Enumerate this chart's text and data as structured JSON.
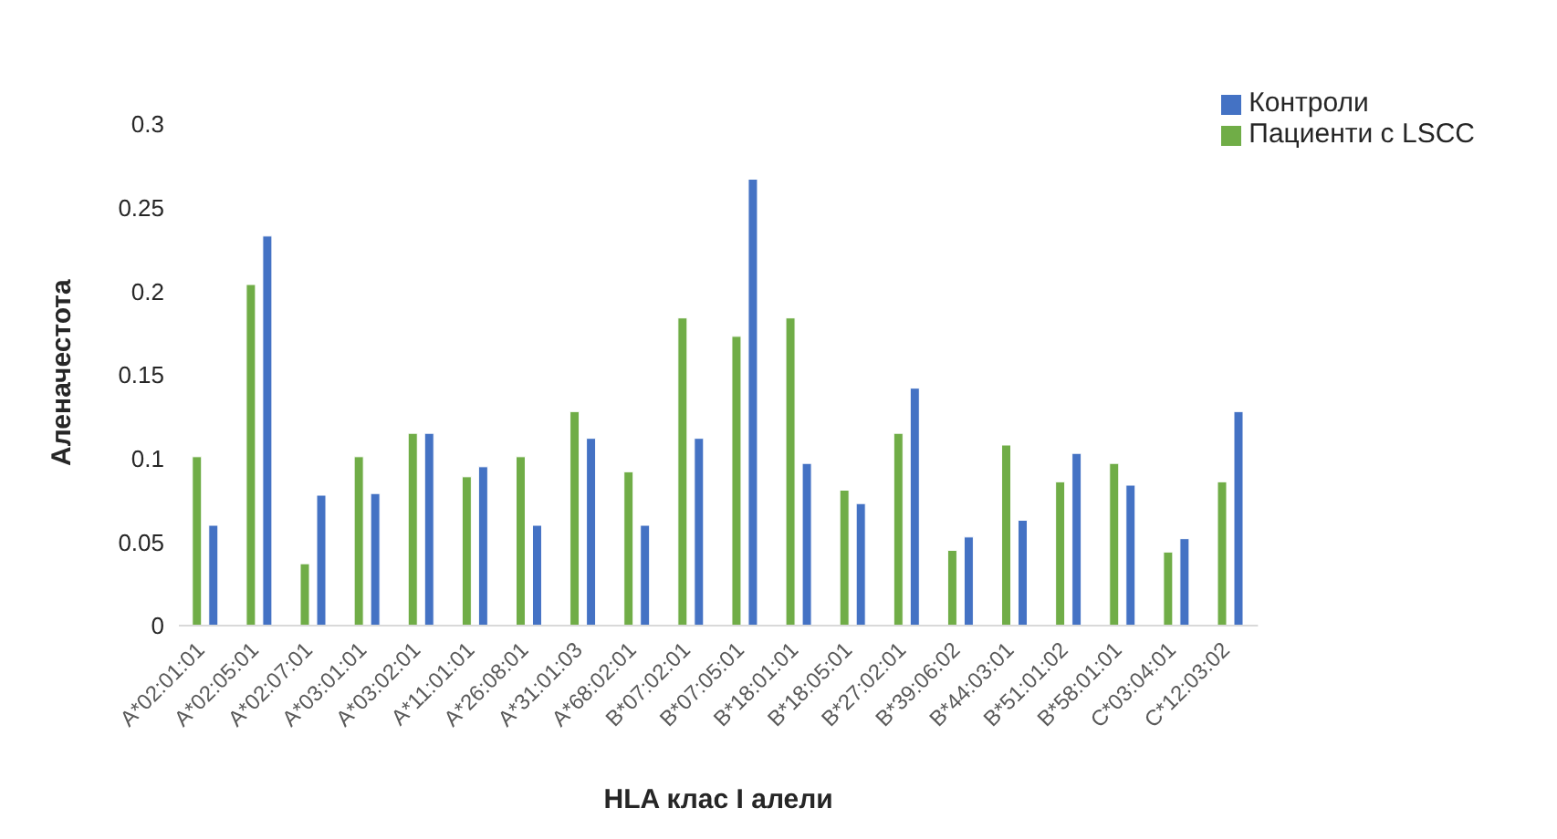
{
  "chart_data": {
    "type": "bar",
    "xlabel": "HLA клас I алели",
    "ylabel": "Аленачестота",
    "categories": [
      "A*02:01:01",
      "A*02:05:01",
      "A*02:07:01",
      "A*03:01:01",
      "A*03:02:01",
      "A*11:01:01",
      "A*26:08:01",
      "A*31:01:03",
      "A*68:02:01",
      "B*07:02:01",
      "B*07:05:01",
      "B*18:01:01",
      "B*18:05:01",
      "B*27:02:01",
      "B*39:06:02",
      "B*44:03:01",
      "B*51:01:02",
      "B*58:01:01",
      "C*03:04:01",
      "C*12:03:02"
    ],
    "series": [
      {
        "name": "Пациенти с LSCC",
        "color": "#70ad47",
        "values": [
          0.101,
          0.204,
          0.037,
          0.101,
          0.115,
          0.089,
          0.101,
          0.128,
          0.092,
          0.184,
          0.173,
          0.184,
          0.081,
          0.115,
          0.045,
          0.108,
          0.086,
          0.097,
          0.044,
          0.086
        ]
      },
      {
        "name": "Контроли",
        "color": "#4472c4",
        "values": [
          0.06,
          0.233,
          0.078,
          0.079,
          0.115,
          0.095,
          0.06,
          0.112,
          0.06,
          0.112,
          0.267,
          0.097,
          0.073,
          0.142,
          0.053,
          0.063,
          0.103,
          0.084,
          0.052,
          0.128
        ]
      }
    ],
    "ylim": [
      0,
      0.3
    ],
    "yticks": [
      0,
      0.05,
      0.1,
      0.15,
      0.2,
      0.25,
      0.3
    ],
    "grid": false,
    "legend": "top right"
  }
}
